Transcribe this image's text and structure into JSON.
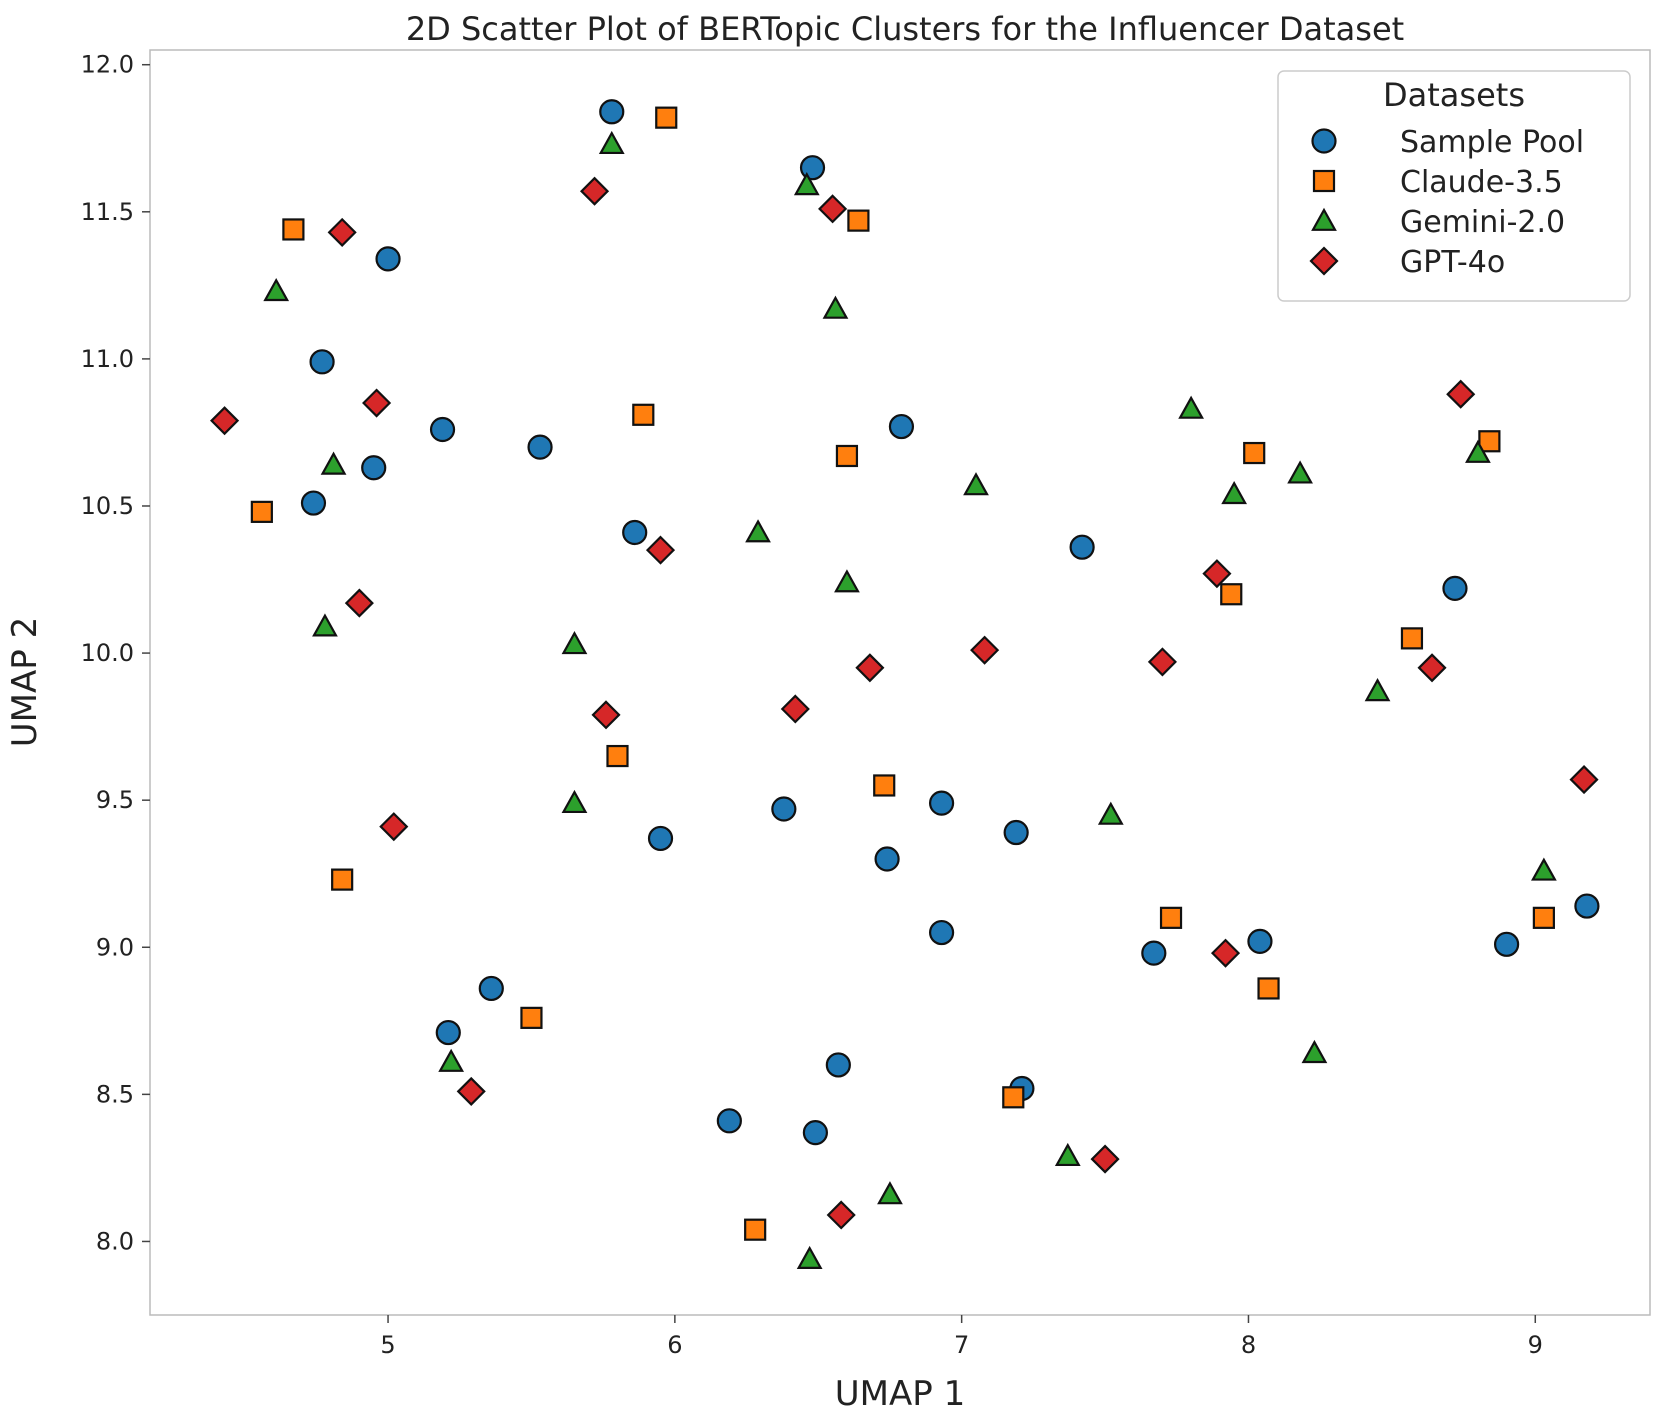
{
  "chart_data": {
    "type": "scatter",
    "title": "2D Scatter Plot of BERTopic Clusters for the Influencer Dataset",
    "xlabel": "UMAP 1",
    "ylabel": "UMAP 2",
    "xlim": [
      4.17,
      9.4
    ],
    "ylim": [
      7.75,
      12.05
    ],
    "xticks": [
      5,
      6,
      7,
      8,
      9
    ],
    "xtick_labels": [
      "5",
      "6",
      "7",
      "8",
      "9"
    ],
    "yticks": [
      8.0,
      8.5,
      9.0,
      9.5,
      10.0,
      10.5,
      11.0,
      11.5,
      12.0
    ],
    "ytick_labels": [
      "8.0",
      "8.5",
      "9.0",
      "9.5",
      "10.0",
      "10.5",
      "11.0",
      "11.5",
      "12.0"
    ],
    "grid": false,
    "legend": {
      "title": "Datasets",
      "position": "top-right"
    },
    "series": [
      {
        "name": "Sample Pool",
        "marker": "circle",
        "color": "#1f77b4",
        "points": [
          [
            5.78,
            11.84
          ],
          [
            6.48,
            11.65
          ],
          [
            5.0,
            11.34
          ],
          [
            4.77,
            10.99
          ],
          [
            5.19,
            10.76
          ],
          [
            5.53,
            10.7
          ],
          [
            4.95,
            10.63
          ],
          [
            4.74,
            10.51
          ],
          [
            6.79,
            10.77
          ],
          [
            5.86,
            10.41
          ],
          [
            7.42,
            10.36
          ],
          [
            8.72,
            10.22
          ],
          [
            6.38,
            9.47
          ],
          [
            5.95,
            9.37
          ],
          [
            6.93,
            9.49
          ],
          [
            7.19,
            9.39
          ],
          [
            6.74,
            9.3
          ],
          [
            6.93,
            9.05
          ],
          [
            7.67,
            8.98
          ],
          [
            8.04,
            9.02
          ],
          [
            8.9,
            9.01
          ],
          [
            9.18,
            9.14
          ],
          [
            5.36,
            8.86
          ],
          [
            5.21,
            8.71
          ],
          [
            6.57,
            8.6
          ],
          [
            7.21,
            8.52
          ],
          [
            6.19,
            8.41
          ],
          [
            6.49,
            8.37
          ]
        ]
      },
      {
        "name": "Claude-3.5",
        "marker": "square",
        "color": "#ff7f0e",
        "points": [
          [
            5.97,
            11.82
          ],
          [
            4.67,
            11.44
          ],
          [
            6.64,
            11.47
          ],
          [
            5.89,
            10.81
          ],
          [
            6.6,
            10.67
          ],
          [
            4.56,
            10.48
          ],
          [
            8.02,
            10.68
          ],
          [
            8.84,
            10.72
          ],
          [
            7.94,
            10.2
          ],
          [
            8.57,
            10.05
          ],
          [
            5.8,
            9.65
          ],
          [
            6.73,
            9.55
          ],
          [
            4.84,
            9.23
          ],
          [
            7.73,
            9.1
          ],
          [
            9.03,
            9.1
          ],
          [
            5.5,
            8.76
          ],
          [
            8.07,
            8.86
          ],
          [
            7.18,
            8.49
          ],
          [
            6.28,
            8.04
          ]
        ]
      },
      {
        "name": "Gemini-2.0",
        "marker": "triangle",
        "color": "#2ca02c",
        "points": [
          [
            5.78,
            11.73
          ],
          [
            6.46,
            11.59
          ],
          [
            4.61,
            11.23
          ],
          [
            6.56,
            11.17
          ],
          [
            4.81,
            10.64
          ],
          [
            7.8,
            10.83
          ],
          [
            7.05,
            10.57
          ],
          [
            7.95,
            10.54
          ],
          [
            8.18,
            10.61
          ],
          [
            8.8,
            10.68
          ],
          [
            6.29,
            10.41
          ],
          [
            6.6,
            10.24
          ],
          [
            4.78,
            10.09
          ],
          [
            5.65,
            10.03
          ],
          [
            8.45,
            9.87
          ],
          [
            5.65,
            9.49
          ],
          [
            7.52,
            9.45
          ],
          [
            9.03,
            9.26
          ],
          [
            5.22,
            8.61
          ],
          [
            8.23,
            8.64
          ],
          [
            7.37,
            8.29
          ],
          [
            6.75,
            8.16
          ],
          [
            6.47,
            7.94
          ]
        ]
      },
      {
        "name": "GPT-4o",
        "marker": "diamond",
        "color": "#d62728",
        "points": [
          [
            5.72,
            11.57
          ],
          [
            4.84,
            11.43
          ],
          [
            6.55,
            11.51
          ],
          [
            4.43,
            10.79
          ],
          [
            4.96,
            10.85
          ],
          [
            8.74,
            10.88
          ],
          [
            5.95,
            10.35
          ],
          [
            7.89,
            10.27
          ],
          [
            4.9,
            10.17
          ],
          [
            7.08,
            10.01
          ],
          [
            6.68,
            9.95
          ],
          [
            7.7,
            9.97
          ],
          [
            8.64,
            9.95
          ],
          [
            5.76,
            9.79
          ],
          [
            6.42,
            9.81
          ],
          [
            9.17,
            9.57
          ],
          [
            5.02,
            9.41
          ],
          [
            7.92,
            8.98
          ],
          [
            5.29,
            8.51
          ],
          [
            7.5,
            8.28
          ],
          [
            6.58,
            8.09
          ]
        ]
      }
    ]
  }
}
